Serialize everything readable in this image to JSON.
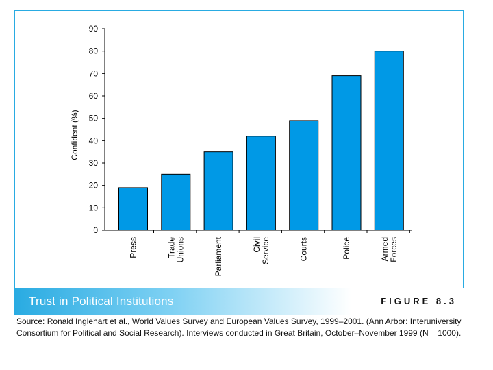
{
  "chart_data": {
    "type": "bar",
    "title": "Trust in Political Institutions",
    "figure_label": "FIGURE 8.3",
    "xlabel": "",
    "ylabel": "Confident (%)",
    "ylim": [
      0,
      90
    ],
    "yticks": [
      0,
      10,
      20,
      30,
      40,
      50,
      60,
      70,
      80,
      90
    ],
    "categories": [
      [
        "Press"
      ],
      [
        "Trade",
        "Unions"
      ],
      [
        "Parliament"
      ],
      [
        "Civil",
        "Service"
      ],
      [
        "Courts"
      ],
      [
        "Police"
      ],
      [
        "Armed",
        "Forces"
      ]
    ],
    "values": [
      19,
      25,
      35,
      42,
      49,
      69,
      80
    ],
    "bar_color": "#0099e6",
    "grid": false
  },
  "caption": {
    "source": "Source: Ronald Inglehart et al., World Values Survey and European Values Survey, 1999–2001. (Ann Arbor: Interuniversity Consortium for Political and Social Research). Interviews conducted in Great Britain, October–November 1999 (N = 1000)."
  },
  "colors": {
    "accent": "#29abe2",
    "bar": "#0099e6"
  }
}
